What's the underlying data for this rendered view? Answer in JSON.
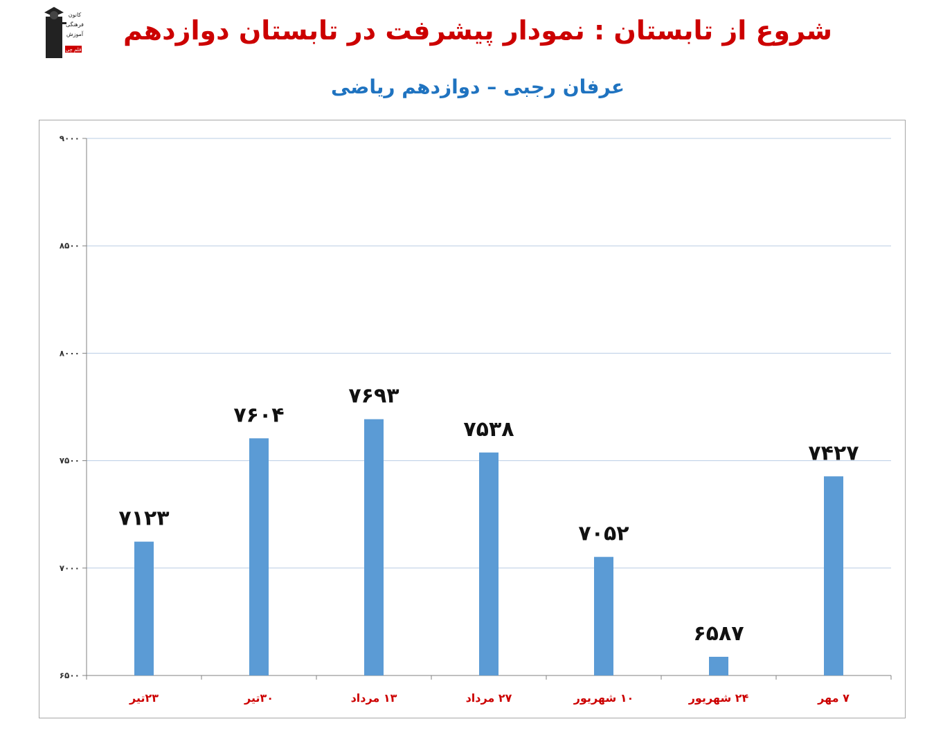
{
  "header": {
    "title": "شروع از تابستان : نمودار پیشرفت در تابستان دوازدهم",
    "subtitle": "عرفان رجبی – دوازدهم ریاضی"
  },
  "logo": {
    "lines": [
      "کانون",
      "فرهنگی",
      "آموزش",
      "قلم چی"
    ]
  },
  "colors": {
    "bar": "#5b9bd5",
    "title": "#cc0000",
    "subtitle": "#1f73c0",
    "category_label": "#cc0000",
    "grid": "#b8cce4"
  },
  "chart_data": {
    "type": "bar",
    "categories": [
      "۲۳تیر",
      "۳۰تیر",
      "۱۳ مرداد",
      "۲۷ مرداد",
      "۱۰ شهریور",
      "۲۴ شهریور",
      "۷ مهر"
    ],
    "values": [
      7123,
      7604,
      7693,
      7538,
      7052,
      6587,
      7427
    ],
    "data_labels": [
      "۷۱۲۳",
      "۷۶۰۴",
      "۷۶۹۳",
      "۷۵۳۸",
      "۷۰۵۲",
      "۶۵۸۷",
      "۷۴۲۷"
    ],
    "ylim": [
      6500,
      9000
    ],
    "y_ticks": [
      6500,
      7000,
      7500,
      8000,
      8500,
      9000
    ],
    "y_tick_labels": [
      "۶۵۰۰",
      "۷۰۰۰",
      "۷۵۰۰",
      "۸۰۰۰",
      "۸۵۰۰",
      "۹۰۰۰"
    ],
    "grid": true,
    "legend": "none"
  }
}
